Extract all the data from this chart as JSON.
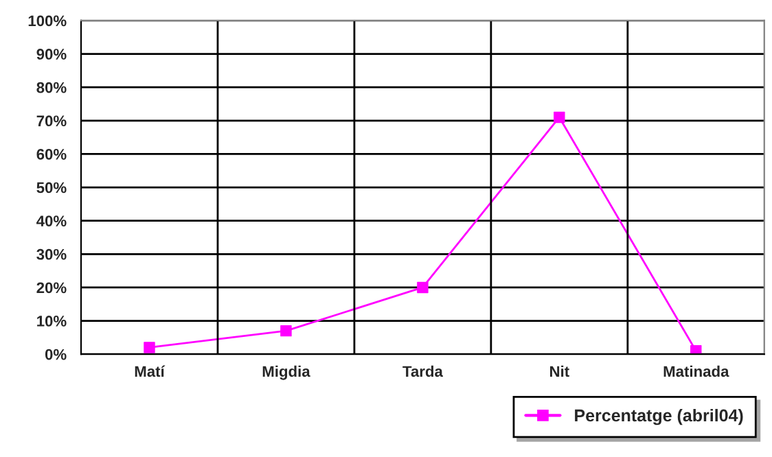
{
  "chart_data": {
    "type": "line",
    "categories": [
      "Matí",
      "Migdia",
      "Tarda",
      "Nit",
      "Matinada"
    ],
    "series": [
      {
        "name": "Percentatge (abril04)",
        "color": "#ff00ff",
        "values": [
          2,
          7,
          20,
          71,
          1
        ]
      }
    ],
    "ylim": [
      0,
      100
    ],
    "yticks": [
      {
        "value": 0,
        "label": "0%"
      },
      {
        "value": 10,
        "label": "10%"
      },
      {
        "value": 20,
        "label": "20%"
      },
      {
        "value": 30,
        "label": "30%"
      },
      {
        "value": 40,
        "label": "40%"
      },
      {
        "value": 50,
        "label": "50%"
      },
      {
        "value": 60,
        "label": "60%"
      },
      {
        "value": 70,
        "label": "70%"
      },
      {
        "value": 80,
        "label": "80%"
      },
      {
        "value": 90,
        "label": "90%"
      },
      {
        "value": 100,
        "label": "100%"
      }
    ],
    "grid": true,
    "legend": "bottom right",
    "marker": "square",
    "line_style": "solid"
  }
}
